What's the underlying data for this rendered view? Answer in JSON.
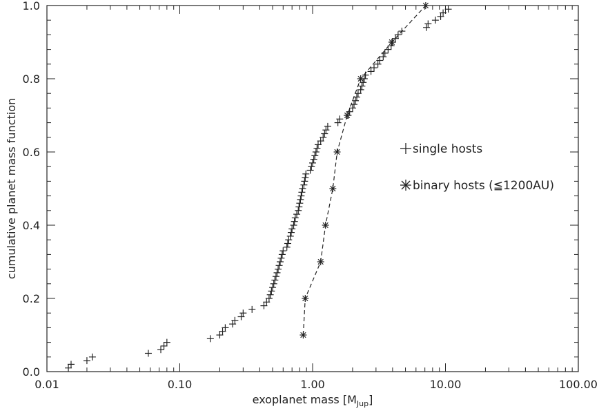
{
  "chart_data": {
    "type": "scatter",
    "xscale": "log",
    "xlim": [
      0.01,
      100
    ],
    "ylim": [
      0,
      1
    ],
    "xlabel": "exoplanet mass [M",
    "xlabel_sub": "Jup",
    "xlabel_end": "]",
    "ylabel": "cumulative planet mass function",
    "xticks": [
      0.01,
      0.1,
      1,
      10,
      100
    ],
    "xtick_labels": [
      "0.01",
      "0.10",
      "1.00",
      "10.00",
      "100.00"
    ],
    "yticks": [
      0,
      0.2,
      0.4,
      0.6,
      0.8,
      1.0
    ],
    "ytick_labels": [
      "0.0",
      "0.2",
      "0.4",
      "0.6",
      "0.8",
      "1.0"
    ],
    "grid": false,
    "legend_position": "right",
    "series": [
      {
        "name": "single hosts",
        "marker": "plus",
        "line": "none",
        "color": "#222222",
        "points": [
          [
            0.0145,
            0.01
          ],
          [
            0.0152,
            0.02
          ],
          [
            0.02,
            0.03
          ],
          [
            0.022,
            0.04
          ],
          [
            0.058,
            0.05
          ],
          [
            0.072,
            0.06
          ],
          [
            0.076,
            0.07
          ],
          [
            0.08,
            0.08
          ],
          [
            0.17,
            0.09
          ],
          [
            0.2,
            0.1
          ],
          [
            0.21,
            0.11
          ],
          [
            0.22,
            0.12
          ],
          [
            0.25,
            0.13
          ],
          [
            0.26,
            0.14
          ],
          [
            0.29,
            0.15
          ],
          [
            0.3,
            0.16
          ],
          [
            0.35,
            0.17
          ],
          [
            0.43,
            0.18
          ],
          [
            0.45,
            0.19
          ],
          [
            0.47,
            0.2
          ],
          [
            0.48,
            0.21
          ],
          [
            0.49,
            0.22
          ],
          [
            0.5,
            0.23
          ],
          [
            0.51,
            0.24
          ],
          [
            0.52,
            0.25
          ],
          [
            0.53,
            0.26
          ],
          [
            0.54,
            0.27
          ],
          [
            0.55,
            0.28
          ],
          [
            0.56,
            0.29
          ],
          [
            0.57,
            0.3
          ],
          [
            0.58,
            0.31
          ],
          [
            0.59,
            0.32
          ],
          [
            0.6,
            0.33
          ],
          [
            0.64,
            0.34
          ],
          [
            0.65,
            0.35
          ],
          [
            0.66,
            0.36
          ],
          [
            0.68,
            0.37
          ],
          [
            0.69,
            0.38
          ],
          [
            0.7,
            0.39
          ],
          [
            0.72,
            0.4
          ],
          [
            0.73,
            0.41
          ],
          [
            0.74,
            0.42
          ],
          [
            0.76,
            0.43
          ],
          [
            0.78,
            0.44
          ],
          [
            0.79,
            0.45
          ],
          [
            0.8,
            0.46
          ],
          [
            0.81,
            0.47
          ],
          [
            0.82,
            0.48
          ],
          [
            0.83,
            0.49
          ],
          [
            0.84,
            0.5
          ],
          [
            0.86,
            0.51
          ],
          [
            0.87,
            0.52
          ],
          [
            0.88,
            0.53
          ],
          [
            0.89,
            0.54
          ],
          [
            0.96,
            0.55
          ],
          [
            0.98,
            0.56
          ],
          [
            1.0,
            0.57
          ],
          [
            1.02,
            0.58
          ],
          [
            1.04,
            0.59
          ],
          [
            1.06,
            0.6
          ],
          [
            1.08,
            0.61
          ],
          [
            1.1,
            0.62
          ],
          [
            1.15,
            0.63
          ],
          [
            1.2,
            0.64
          ],
          [
            1.23,
            0.65
          ],
          [
            1.26,
            0.66
          ],
          [
            1.3,
            0.67
          ],
          [
            1.55,
            0.68
          ],
          [
            1.6,
            0.69
          ],
          [
            1.85,
            0.7
          ],
          [
            1.9,
            0.71
          ],
          [
            2.0,
            0.72
          ],
          [
            2.05,
            0.73
          ],
          [
            2.1,
            0.74
          ],
          [
            2.15,
            0.75
          ],
          [
            2.2,
            0.76
          ],
          [
            2.3,
            0.77
          ],
          [
            2.35,
            0.78
          ],
          [
            2.4,
            0.79
          ],
          [
            2.45,
            0.8
          ],
          [
            2.5,
            0.81
          ],
          [
            2.75,
            0.82
          ],
          [
            2.9,
            0.83
          ],
          [
            3.1,
            0.84
          ],
          [
            3.2,
            0.85
          ],
          [
            3.4,
            0.86
          ],
          [
            3.5,
            0.87
          ],
          [
            3.7,
            0.88
          ],
          [
            3.9,
            0.89
          ],
          [
            4.0,
            0.9
          ],
          [
            4.2,
            0.91
          ],
          [
            4.4,
            0.92
          ],
          [
            4.7,
            0.93
          ],
          [
            7.2,
            0.94
          ],
          [
            7.4,
            0.95
          ],
          [
            8.4,
            0.96
          ],
          [
            9.2,
            0.97
          ],
          [
            9.6,
            0.98
          ],
          [
            10.5,
            0.99
          ]
        ]
      },
      {
        "name": "binary hosts (≦1200AU)",
        "marker": "asterisk",
        "line": "dashed",
        "color": "#222222",
        "points": [
          [
            0.85,
            0.1
          ],
          [
            0.88,
            0.2
          ],
          [
            1.15,
            0.3
          ],
          [
            1.25,
            0.4
          ],
          [
            1.42,
            0.5
          ],
          [
            1.53,
            0.6
          ],
          [
            1.82,
            0.7
          ],
          [
            2.3,
            0.8
          ],
          [
            3.95,
            0.9
          ],
          [
            7.1,
            1.0
          ]
        ]
      }
    ]
  }
}
